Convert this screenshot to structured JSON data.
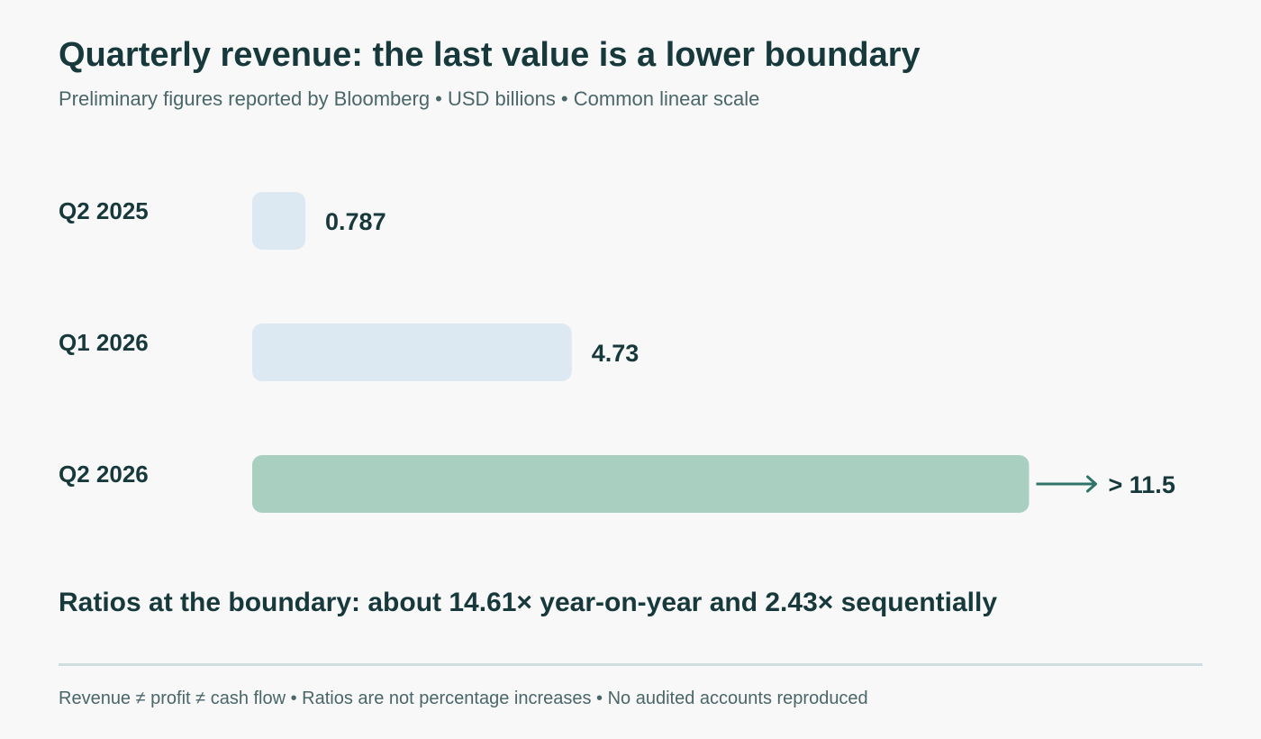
{
  "header": {
    "title": "Quarterly revenue: the last value is a lower boundary",
    "subtitle": "Preliminary figures reported by Bloomberg • USD billions • Common linear scale"
  },
  "chart_data": {
    "type": "bar",
    "orientation": "horizontal",
    "categories": [
      "Q2 2025",
      "Q1 2026",
      "Q2 2026"
    ],
    "values": [
      0.787,
      4.73,
      11.5
    ],
    "value_labels": [
      "0.787",
      "4.73",
      "> 11.5"
    ],
    "lower_bound": [
      false,
      false,
      true
    ],
    "colors": [
      "#dce9f2",
      "#dce9f2",
      "#a8cfbf"
    ],
    "arrow_color": "#2f7469",
    "grid": false,
    "legend": "none"
  },
  "summary": {
    "ratio_text": "Ratios at the boundary: about 14.61× year-on-year and 2.43× sequentially"
  },
  "footer": {
    "note": "Revenue ≠ profit ≠ cash flow • Ratios are not percentage increases • No audited accounts reproduced"
  }
}
